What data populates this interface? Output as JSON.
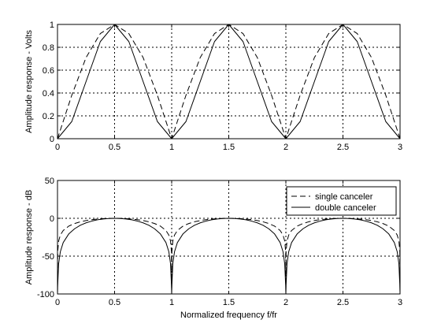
{
  "chart_data": [
    {
      "type": "line",
      "xlabel": "",
      "ylabel": "Amplitude response - Volts",
      "xlim": [
        0,
        3
      ],
      "ylim": [
        0,
        1
      ],
      "xticks": [
        "0",
        "0.5",
        "1",
        "1.5",
        "2",
        "2.5",
        "3"
      ],
      "yticks": [
        "0",
        "0.2",
        "0.4",
        "0.6",
        "0.8",
        "1"
      ],
      "grid": true,
      "series": [
        {
          "style": "dashed",
          "x": [
            0,
            0.125,
            0.25,
            0.375,
            0.5,
            0.625,
            0.75,
            0.875,
            1,
            1.125,
            1.25,
            1.375,
            1.5,
            1.625,
            1.75,
            1.875,
            2,
            2.125,
            2.25,
            2.375,
            2.5,
            2.625,
            2.75,
            2.875,
            3
          ],
          "values": [
            0,
            0.38,
            0.71,
            0.92,
            1,
            0.92,
            0.71,
            0.38,
            0,
            0.38,
            0.71,
            0.92,
            1,
            0.92,
            0.71,
            0.38,
            0,
            0.38,
            0.71,
            0.92,
            1,
            0.92,
            0.71,
            0.38,
            0
          ]
        },
        {
          "style": "solid",
          "x": [
            0,
            0.125,
            0.25,
            0.375,
            0.5,
            0.625,
            0.75,
            0.875,
            1,
            1.125,
            1.25,
            1.375,
            1.5,
            1.625,
            1.75,
            1.875,
            2,
            2.125,
            2.25,
            2.375,
            2.5,
            2.625,
            2.75,
            2.875,
            3
          ],
          "values": [
            0,
            0.15,
            0.5,
            0.85,
            1,
            0.85,
            0.5,
            0.15,
            0,
            0.15,
            0.5,
            0.85,
            1,
            0.85,
            0.5,
            0.15,
            0,
            0.15,
            0.5,
            0.85,
            1,
            0.85,
            0.5,
            0.15,
            0
          ]
        }
      ]
    },
    {
      "type": "line",
      "xlabel": "Normalized frequency f/fr",
      "ylabel": "Amplitude response - dB",
      "xlim": [
        0,
        3
      ],
      "ylim": [
        -100,
        50
      ],
      "xticks": [
        "0",
        "0.5",
        "1",
        "1.5",
        "2",
        "2.5",
        "3"
      ],
      "yticks": [
        "-100",
        "-50",
        "0",
        "50"
      ],
      "grid": true,
      "legend": "top-right",
      "series": [
        {
          "name": "single canceler",
          "style": "dashed",
          "x": [
            0,
            0.002,
            0.01,
            0.025,
            0.05,
            0.1,
            0.15,
            0.2,
            0.25,
            0.3,
            0.35,
            0.4,
            0.45,
            0.5,
            0.55,
            0.6,
            0.65,
            0.7,
            0.75,
            0.8,
            0.85,
            0.9,
            0.95,
            0.975,
            0.99,
            0.998,
            1,
            1.002,
            1.01,
            1.025,
            1.05,
            1.1,
            1.15,
            1.2,
            1.25,
            1.3,
            1.35,
            1.4,
            1.45,
            1.5,
            1.55,
            1.6,
            1.65,
            1.7,
            1.75,
            1.8,
            1.85,
            1.9,
            1.95,
            1.975,
            1.99,
            1.998,
            2,
            2.002,
            2.01,
            2.025,
            2.05,
            2.1,
            2.15,
            2.2,
            2.25,
            2.3,
            2.35,
            2.4,
            2.45,
            2.5,
            2.55,
            2.6,
            2.65,
            2.7,
            2.75,
            2.8,
            2.85,
            2.9,
            2.95,
            2.975,
            2.99,
            2.998,
            3
          ],
          "values": [
            -100,
            -44.1,
            -30.1,
            -22.1,
            -16.1,
            -10.2,
            -6.9,
            -4.6,
            -3,
            -1.8,
            -1,
            -0.4,
            -0.1,
            0,
            -0.1,
            -0.4,
            -1,
            -1.8,
            -3,
            -4.6,
            -6.9,
            -10.2,
            -16.1,
            -22.1,
            -30.1,
            -44.1,
            -100,
            -44.1,
            -30.1,
            -22.1,
            -16.1,
            -10.2,
            -6.9,
            -4.6,
            -3,
            -1.8,
            -1,
            -0.4,
            -0.1,
            0,
            -0.1,
            -0.4,
            -1,
            -1.8,
            -3,
            -4.6,
            -6.9,
            -10.2,
            -16.1,
            -22.1,
            -30.1,
            -44.1,
            -100,
            -44.1,
            -30.1,
            -22.1,
            -16.1,
            -10.2,
            -6.9,
            -4.6,
            -3,
            -1.8,
            -1,
            -0.4,
            -0.1,
            0,
            -0.1,
            -0.4,
            -1,
            -1.8,
            -3,
            -4.6,
            -6.9,
            -10.2,
            -16.1,
            -22.1,
            -30.1,
            -44.1,
            -100
          ]
        },
        {
          "name": "double canceler",
          "style": "solid",
          "x": [
            0,
            0.002,
            0.01,
            0.025,
            0.05,
            0.1,
            0.15,
            0.2,
            0.25,
            0.3,
            0.35,
            0.4,
            0.45,
            0.5,
            0.55,
            0.6,
            0.65,
            0.7,
            0.75,
            0.8,
            0.85,
            0.9,
            0.95,
            0.975,
            0.99,
            0.998,
            1,
            1.002,
            1.01,
            1.025,
            1.05,
            1.1,
            1.15,
            1.2,
            1.25,
            1.3,
            1.35,
            1.4,
            1.45,
            1.5,
            1.55,
            1.6,
            1.65,
            1.7,
            1.75,
            1.8,
            1.85,
            1.9,
            1.95,
            1.975,
            1.99,
            1.998,
            2,
            2.002,
            2.01,
            2.025,
            2.05,
            2.1,
            2.15,
            2.2,
            2.25,
            2.3,
            2.35,
            2.4,
            2.45,
            2.5,
            2.55,
            2.6,
            2.65,
            2.7,
            2.75,
            2.8,
            2.85,
            2.9,
            2.95,
            2.975,
            2.99,
            2.998,
            3
          ],
          "values": [
            -100,
            -88.2,
            -60.1,
            -44.1,
            -32.1,
            -20.4,
            -13.8,
            -9.2,
            -6,
            -3.7,
            -2,
            -0.9,
            -0.2,
            0,
            -0.2,
            -0.9,
            -2,
            -3.7,
            -6,
            -9.2,
            -13.8,
            -20.4,
            -32.1,
            -44.1,
            -60.1,
            -88.2,
            -100,
            -88.2,
            -60.1,
            -44.1,
            -32.1,
            -20.4,
            -13.8,
            -9.2,
            -6,
            -3.7,
            -2,
            -0.9,
            -0.2,
            0,
            -0.2,
            -0.9,
            -2,
            -3.7,
            -6,
            -9.2,
            -13.8,
            -20.4,
            -32.1,
            -44.1,
            -60.1,
            -88.2,
            -100,
            -88.2,
            -60.1,
            -44.1,
            -32.1,
            -20.4,
            -13.8,
            -9.2,
            -6,
            -3.7,
            -2,
            -0.9,
            -0.2,
            0,
            -0.2,
            -0.9,
            -2,
            -3.7,
            -6,
            -9.2,
            -13.8,
            -20.4,
            -32.1,
            -44.1,
            -60.1,
            -88.2,
            -100
          ]
        }
      ]
    }
  ]
}
